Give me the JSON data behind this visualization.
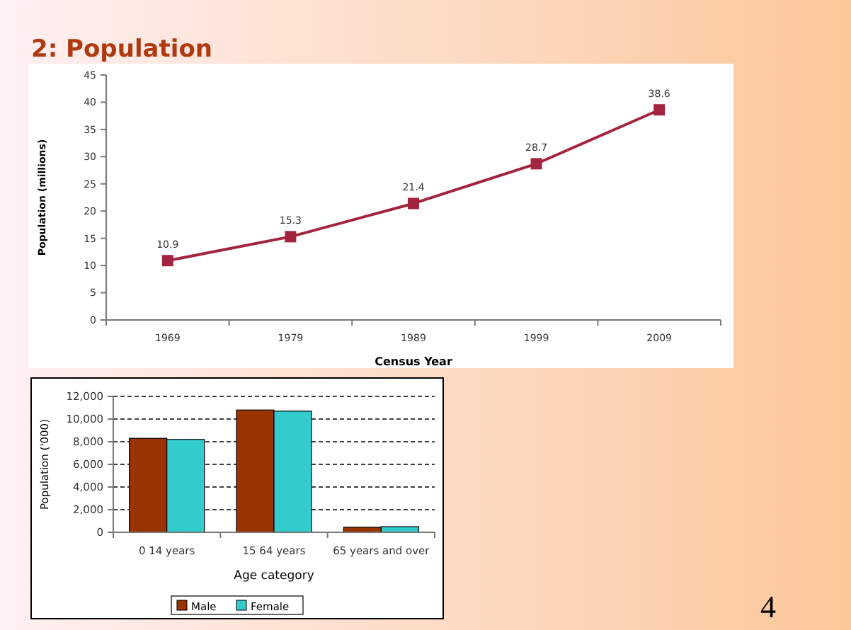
{
  "chart_data": [
    {
      "type": "line",
      "title": "2: Population",
      "xlabel": "Census Year",
      "ylabel": "Population (millions)",
      "categories": [
        "1969",
        "1979",
        "1989",
        "1999",
        "2009"
      ],
      "series": [
        {
          "color": "#a3243f",
          "values": [
            10.9,
            15.3,
            21.4,
            28.7,
            38.6
          ]
        }
      ],
      "ylim": [
        0,
        45
      ],
      "yticks": [
        0,
        5,
        10,
        15,
        20,
        25,
        30,
        35,
        40,
        45
      ],
      "data_labels": true,
      "marker": "square",
      "grid": false,
      "legend": false
    },
    {
      "type": "bar",
      "xlabel": "Age category",
      "ylabel": "Population ('000)",
      "categories": [
        "0 14 years",
        "15 64 years",
        "65 years and over"
      ],
      "series": [
        {
          "name": "Male",
          "color": "#993300",
          "values": [
            8300,
            10800,
            450
          ]
        },
        {
          "name": "Female",
          "color": "#33cccc",
          "values": [
            8200,
            10700,
            500
          ]
        }
      ],
      "ylim": [
        0,
        12000
      ],
      "yticks": [
        0,
        {
          "value": 2000,
          "label": "2,000"
        },
        {
          "value": 4000,
          "label": "4,000"
        },
        {
          "value": 6000,
          "label": "6,000"
        },
        {
          "value": 8000,
          "label": "8,000"
        },
        {
          "value": 10000,
          "label": "10,000"
        },
        {
          "value": 12000,
          "label": "12,000"
        }
      ],
      "grid": "y",
      "legend": "bottom",
      "annotations": [
        "4"
      ]
    }
  ]
}
